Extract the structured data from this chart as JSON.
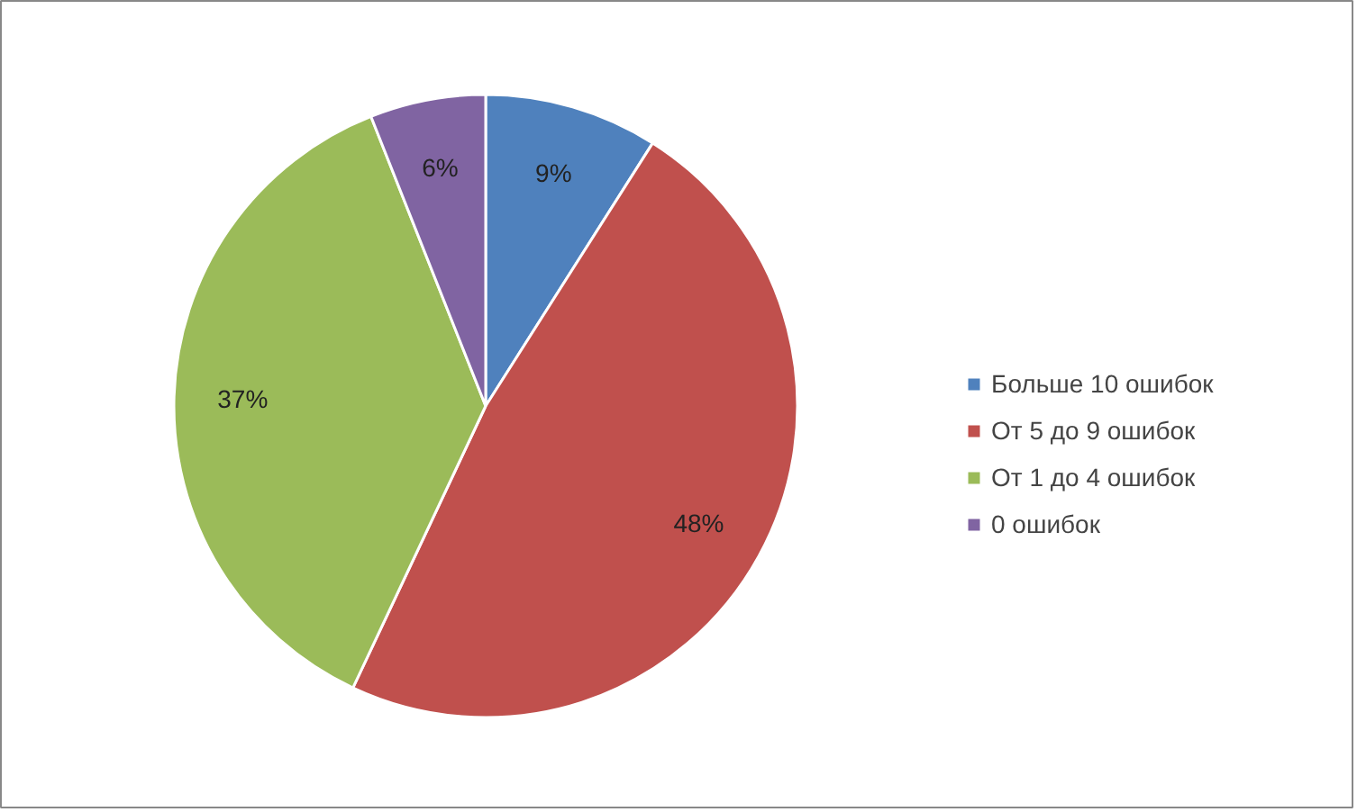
{
  "chart_data": {
    "type": "pie",
    "categories": [
      "Больше 10 ошибок",
      "От 5 до 9 ошибок",
      "От 1 до 4 ошибок",
      "0 ошибок"
    ],
    "values": [
      9,
      48,
      37,
      6
    ],
    "colors": [
      "#4f81bd",
      "#c0504d",
      "#9bbb59",
      "#8064a2"
    ],
    "value_labels": [
      "9%",
      "48%",
      "37%",
      "6%"
    ],
    "legend": "right"
  }
}
